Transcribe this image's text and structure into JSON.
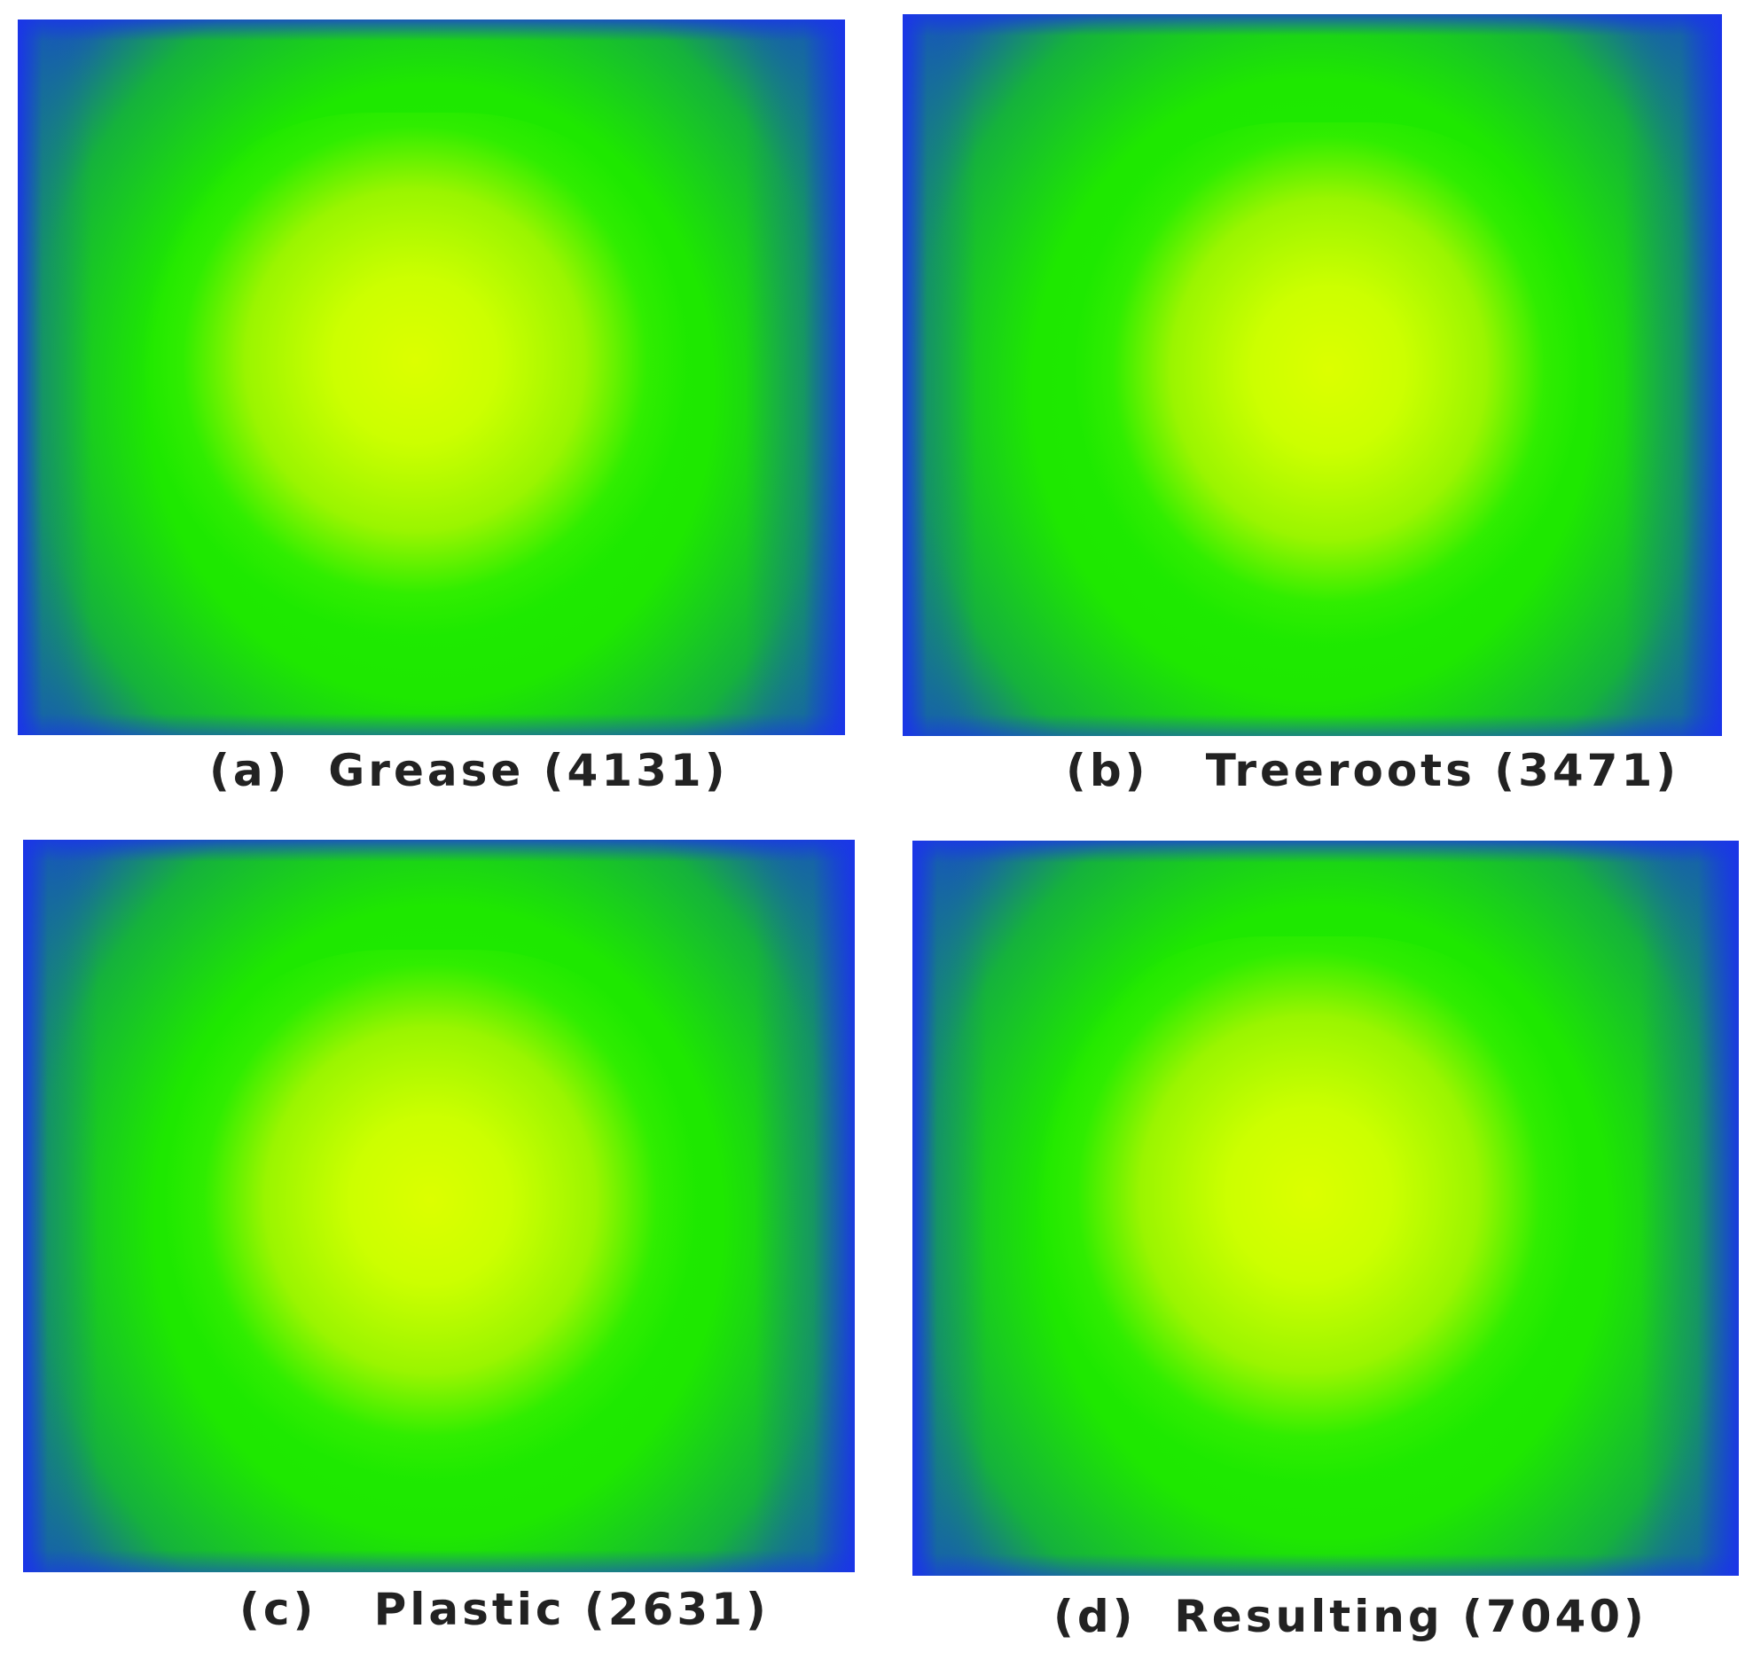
{
  "panels": [
    {
      "id": "a",
      "caption": "(a)  Grease (4131)"
    },
    {
      "id": "b",
      "caption": "(b)   Treeroots (3471)"
    },
    {
      "id": "c",
      "caption": "(c)   Plastic (2631)"
    },
    {
      "id": "d",
      "caption": "(d)  Resulting (7040)"
    }
  ],
  "colors": {
    "edge": "#1a35e8",
    "body": "#1ee800",
    "core": "#dcff00",
    "caption_text": "#222222"
  }
}
